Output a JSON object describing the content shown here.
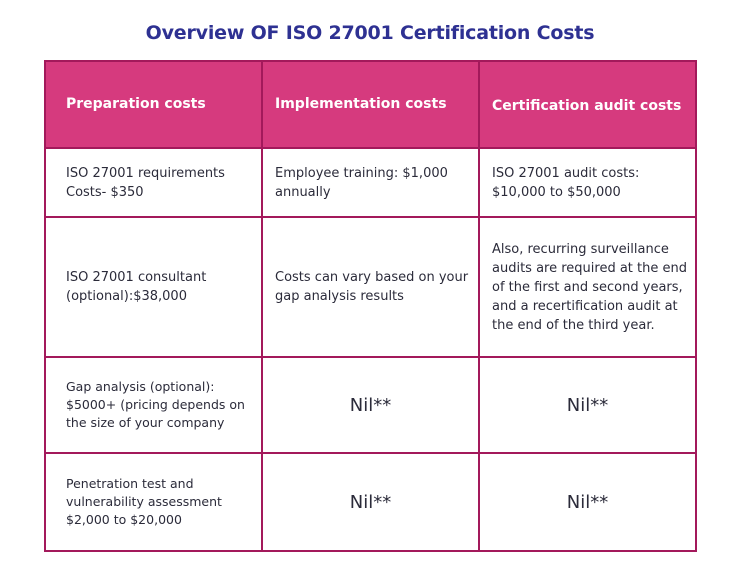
{
  "title": "Overview OF ISO 27001 Certification Costs",
  "headers": [
    "Preparation costs",
    "Implementation costs",
    "Certification audit costs"
  ],
  "rows": [
    [
      "ISO 27001 requirements Costs- $350",
      "Employee training: $1,000 annually",
      "ISO 27001 audit costs: $10,000 to $50,000"
    ],
    [
      "ISO 27001 consultant (optional):$38,000",
      "Costs can vary based on your gap analysis results",
      "Also, recurring surveillance audits are required at the end of the first and second years, and a recertification audit at the end of the third year."
    ],
    [
      "Gap analysis (optional): $5000+ (pricing depends on the size of your company",
      "Nil**",
      "Nil**"
    ],
    [
      "Penetration test and vulnerability assessment $2,000 to $20,000",
      "Nil**",
      "Nil**"
    ]
  ],
  "colors": {
    "title": "#2e3192",
    "header_bg": "#d63a7e",
    "border": "#a3195b"
  }
}
